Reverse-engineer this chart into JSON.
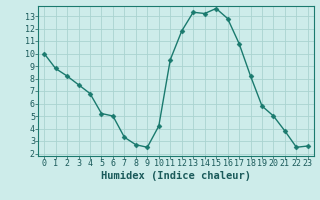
{
  "x": [
    0,
    1,
    2,
    3,
    4,
    5,
    6,
    7,
    8,
    9,
    10,
    11,
    12,
    13,
    14,
    15,
    16,
    17,
    18,
    19,
    20,
    21,
    22,
    23
  ],
  "y": [
    10,
    8.8,
    8.2,
    7.5,
    6.8,
    5.2,
    5.0,
    3.3,
    2.7,
    2.5,
    4.2,
    9.5,
    11.8,
    13.3,
    13.2,
    13.6,
    12.8,
    10.8,
    8.2,
    5.8,
    5.0,
    3.8,
    2.5,
    2.6
  ],
  "line_color": "#1a7a6e",
  "marker": "D",
  "marker_size": 2.5,
  "bg_color": "#cdecea",
  "grid_color": "#aad4d0",
  "xlabel": "Humidex (Indice chaleur)",
  "ylim": [
    1.8,
    13.8
  ],
  "xlim": [
    -0.5,
    23.5
  ],
  "yticks": [
    2,
    3,
    4,
    5,
    6,
    7,
    8,
    9,
    10,
    11,
    12,
    13
  ],
  "xticks": [
    0,
    1,
    2,
    3,
    4,
    5,
    6,
    7,
    8,
    9,
    10,
    11,
    12,
    13,
    14,
    15,
    16,
    17,
    18,
    19,
    20,
    21,
    22,
    23
  ],
  "tick_fontsize": 6,
  "xlabel_fontsize": 7.5
}
